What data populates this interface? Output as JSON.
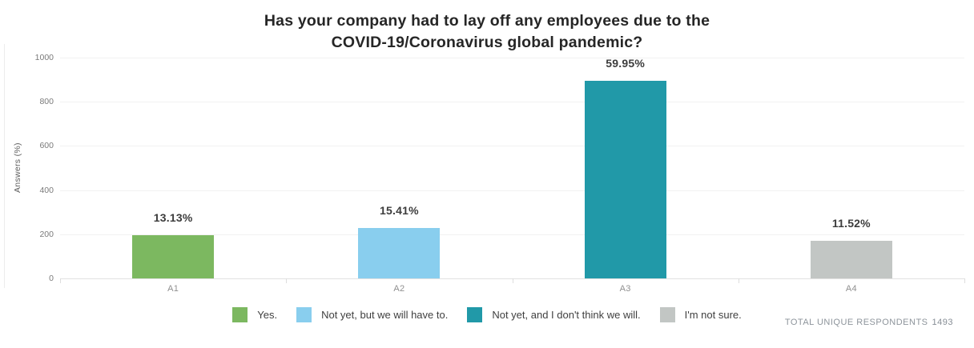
{
  "title": {
    "line1": "Has your company had to lay off any employees due to the",
    "line2": "COVID-19/Coronavirus global pandemic?"
  },
  "chart_data": {
    "type": "bar",
    "title": "Has your company had to lay off any employees due to the COVID-19/Coronavirus global pandemic?",
    "categories": [
      "A1",
      "A2",
      "A3",
      "A4"
    ],
    "values": [
      196,
      230,
      895,
      172
    ],
    "bar_labels": [
      "13.13%",
      "15.41%",
      "59.95%",
      "11.52%"
    ],
    "colors": [
      "#7cb860",
      "#89ceee",
      "#2199a8",
      "#c2c6c4"
    ],
    "xlabel": "",
    "ylabel": "Answers (%)",
    "ylim": [
      0,
      1000
    ],
    "yticks": [
      0,
      200,
      400,
      600,
      800,
      1000
    ],
    "grid": true,
    "legend_position": "bottom",
    "legend": [
      {
        "label": "Yes.",
        "color": "#7cb860"
      },
      {
        "label": "Not yet, but we will have to.",
        "color": "#89ceee"
      },
      {
        "label": "Not yet, and I don't think we will.",
        "color": "#2199a8"
      },
      {
        "label": "I'm not sure.",
        "color": "#c2c6c4"
      }
    ]
  },
  "footer": {
    "label": "TOTAL UNIQUE RESPONDENTS",
    "value": "1493"
  }
}
